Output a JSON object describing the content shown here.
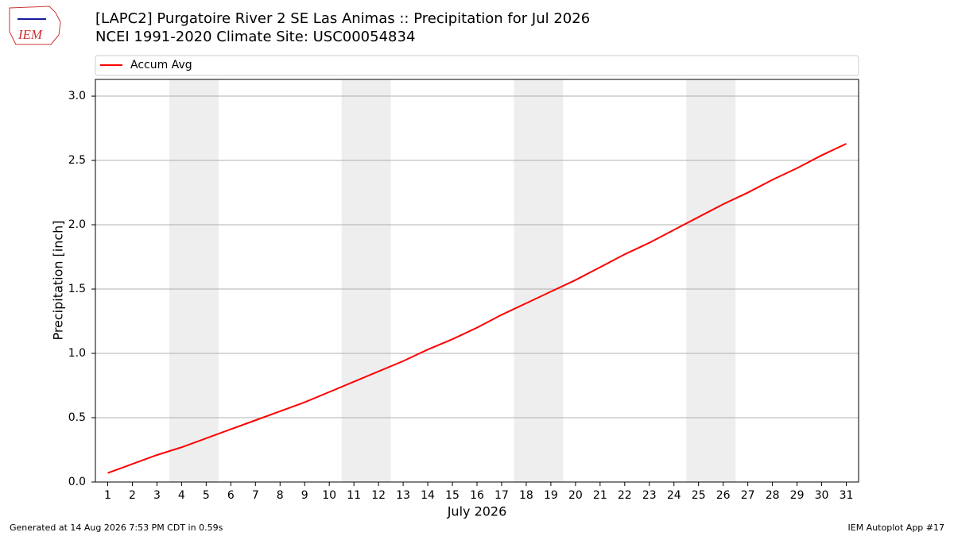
{
  "chart_data": {
    "type": "line",
    "title": "[LAPC2] Purgatoire River 2 SE Las Animas :: Precipitation for Jul 2026",
    "subtitle": "NCEI 1991-2020 Climate Site: USC00054834",
    "x_label": "July 2026",
    "y_label": "Precipitation [inch]",
    "x": [
      1,
      2,
      3,
      4,
      5,
      6,
      7,
      8,
      9,
      10,
      11,
      12,
      13,
      14,
      15,
      16,
      17,
      18,
      19,
      20,
      21,
      22,
      23,
      24,
      25,
      26,
      27,
      28,
      29,
      30,
      31
    ],
    "series": [
      {
        "name": "Accum Avg",
        "color": "#ff0000",
        "values": [
          0.07,
          0.14,
          0.21,
          0.27,
          0.34,
          0.41,
          0.48,
          0.55,
          0.62,
          0.7,
          0.78,
          0.86,
          0.94,
          1.03,
          1.11,
          1.2,
          1.3,
          1.39,
          1.48,
          1.57,
          1.67,
          1.77,
          1.86,
          1.96,
          2.06,
          2.16,
          2.25,
          2.35,
          2.44,
          2.54,
          2.63
        ]
      }
    ],
    "xlim": [
      0.5,
      31.5
    ],
    "ylim": [
      0,
      3.13
    ],
    "xticks": [
      1,
      2,
      3,
      4,
      5,
      6,
      7,
      8,
      9,
      10,
      11,
      12,
      13,
      14,
      15,
      16,
      17,
      18,
      19,
      20,
      21,
      22,
      23,
      24,
      25,
      26,
      27,
      28,
      29,
      30,
      31
    ],
    "yticks": [
      {
        "value": 0,
        "label": "0.0"
      },
      0.5,
      {
        "value": 1,
        "label": "1.0"
      },
      1.5,
      {
        "value": 2,
        "label": "2.0"
      },
      2.5,
      {
        "value": 3,
        "label": "3.0"
      }
    ],
    "grid": true,
    "shaded_spans": [
      [
        3.5,
        5.5
      ],
      [
        10.5,
        12.5
      ],
      [
        17.5,
        19.5
      ],
      [
        24.5,
        26.5
      ]
    ],
    "shade_color": "#eeeeee",
    "legend_position": "top"
  },
  "logo_text": "IEM",
  "footer": {
    "left": "Generated at 14 Aug 2026 7:53 PM CDT in 0.59s",
    "right": "IEM Autoplot App #17"
  }
}
